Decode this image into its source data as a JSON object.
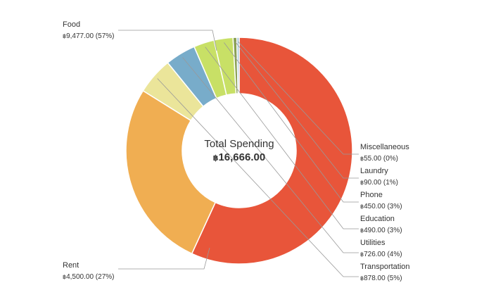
{
  "chart_data": {
    "type": "donut",
    "center": {
      "title": "Total Spending",
      "currency_symbol": "฿",
      "total": "16,666.00"
    },
    "currency_symbol": "฿",
    "slices": [
      {
        "name": "Food",
        "value": 9477.0,
        "value_label": "9,477.00",
        "percent_label": "(57%)",
        "color": "#e8553a"
      },
      {
        "name": "Rent",
        "value": 4500.0,
        "value_label": "4,500.00",
        "percent_label": "(27%)",
        "color": "#f0ae52"
      },
      {
        "name": "Transportation",
        "value": 878.0,
        "value_label": "878.00",
        "percent_label": "(5%)",
        "color": "#ebe59a"
      },
      {
        "name": "Utilities",
        "value": 726.0,
        "value_label": "726.00",
        "percent_label": "(4%)",
        "color": "#78acca"
      },
      {
        "name": "Education",
        "value": 490.0,
        "value_label": "490.00",
        "percent_label": "(3%)",
        "color": "#c8e066"
      },
      {
        "name": "Phone",
        "value": 450.0,
        "value_label": "450.00",
        "percent_label": "(3%)",
        "color": "#c8e066"
      },
      {
        "name": "Laundry",
        "value": 90.0,
        "value_label": "90.00",
        "percent_label": "(1%)",
        "color": "#8aa053"
      },
      {
        "name": "Miscellaneous",
        "value": 55.0,
        "value_label": "55.00",
        "percent_label": "(0%)",
        "color": "#9fc4d8"
      }
    ],
    "start_angle_deg": 90,
    "direction": "clockwise"
  }
}
